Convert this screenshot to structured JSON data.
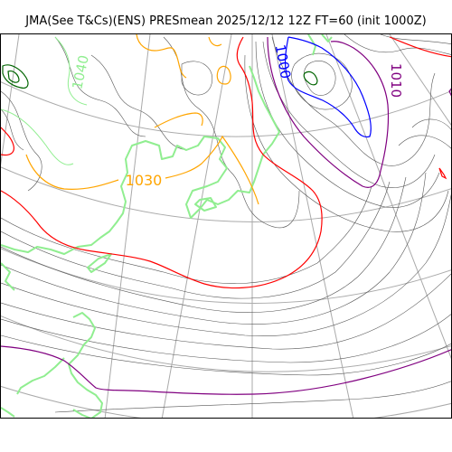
{
  "title": "JMA(See T&Cs)(ENS) PRESmean 2025/12/12 12Z FT=60 (init 1000Z)",
  "contour_labels": [
    {
      "id": "lbl-1040",
      "text": "1040",
      "color": "#90ee90"
    },
    {
      "id": "lbl-1030",
      "text": "1030",
      "color": "#ffa500"
    },
    {
      "id": "lbl-1000",
      "text": "1000",
      "color": "#0000ff"
    },
    {
      "id": "lbl-1010",
      "text": "1010",
      "color": "#800080"
    }
  ],
  "colors": {
    "coastline": "#90ee90",
    "isobar": "#555555",
    "isobar_1020": "#ff0000",
    "isobar_1030": "#ffa500",
    "isobar_1040": "#90ee90",
    "isobar_1000": "#0000ff",
    "isobar_1010": "#800080",
    "high_center": "#006400",
    "graticule": "#aaaaaa"
  }
}
